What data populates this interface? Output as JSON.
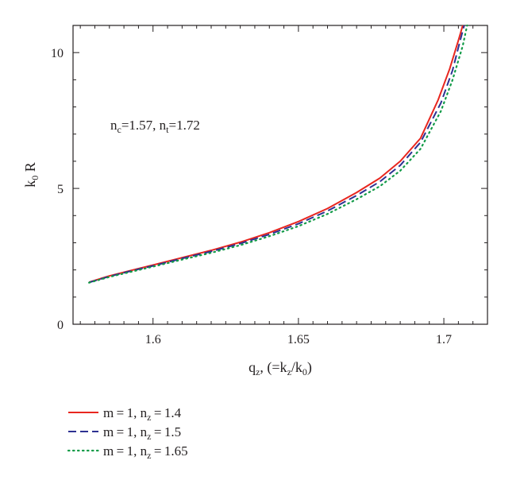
{
  "chart_data": {
    "type": "line",
    "xlabel": {
      "main": "q",
      "sub": "z",
      "mid": ", (=k",
      "sub2": "z",
      "mid2": "/k",
      "sub3": "0",
      "end": ")"
    },
    "ylabel": {
      "main": "k",
      "sub": "0",
      "end": " R"
    },
    "xlim": [
      1.5725,
      1.715
    ],
    "ylim": [
      0,
      11
    ],
    "xticks": [
      1.6,
      1.65,
      1.7
    ],
    "xtick_labels": [
      "1.6",
      "1.65",
      "1.7"
    ],
    "yticks": [
      0,
      5,
      10
    ],
    "ytick_labels": [
      "0",
      "5",
      "10"
    ],
    "grid": false,
    "annotation": {
      "p1": "n",
      "s1": "c",
      "p2": "=1.57, n",
      "s2": "t",
      "p3": "=1.72"
    },
    "legend_position": "below plot, left",
    "series": [
      {
        "name": "m = 1, n = 1.4",
        "legend": {
          "p1": "m = 1, n",
          "s1": "z",
          "p2": " = 1.4"
        },
        "color": "#e8261f",
        "dash": "solid",
        "x": [
          1.578,
          1.585,
          1.592,
          1.6,
          1.61,
          1.62,
          1.63,
          1.64,
          1.65,
          1.66,
          1.67,
          1.678,
          1.685,
          1.692,
          1.698,
          1.702,
          1.705,
          1.7065
        ],
        "y": [
          1.55,
          1.78,
          1.97,
          2.18,
          2.45,
          2.72,
          3.02,
          3.37,
          3.78,
          4.26,
          4.85,
          5.38,
          6.0,
          6.85,
          8.25,
          9.4,
          10.45,
          11.0
        ]
      },
      {
        "name": "m = 1, n = 1.5",
        "legend": {
          "p1": "m = 1, n",
          "s1": "z",
          "p2": " = 1.5"
        },
        "color": "#2e3192",
        "dash": "dashed",
        "x": [
          1.578,
          1.585,
          1.592,
          1.6,
          1.61,
          1.62,
          1.63,
          1.64,
          1.65,
          1.66,
          1.67,
          1.678,
          1.685,
          1.692,
          1.699,
          1.703,
          1.7055,
          1.707
        ],
        "y": [
          1.54,
          1.76,
          1.95,
          2.15,
          2.42,
          2.68,
          2.97,
          3.31,
          3.7,
          4.17,
          4.74,
          5.25,
          5.85,
          6.7,
          8.15,
          9.35,
          10.4,
          11.0
        ]
      },
      {
        "name": "m = 1, n = 1.65",
        "legend": {
          "p1": "m = 1, n",
          "s1": "z",
          "p2": " = 1.65"
        },
        "color": "#129b48",
        "dash": "dotted",
        "x": [
          1.578,
          1.585,
          1.592,
          1.6,
          1.61,
          1.62,
          1.63,
          1.64,
          1.65,
          1.66,
          1.67,
          1.678,
          1.685,
          1.692,
          1.699,
          1.703,
          1.7065,
          1.708
        ],
        "y": [
          1.53,
          1.74,
          1.92,
          2.12,
          2.38,
          2.63,
          2.91,
          3.24,
          3.61,
          4.06,
          4.6,
          5.08,
          5.65,
          6.46,
          7.85,
          9.0,
          10.25,
          11.0
        ]
      }
    ]
  }
}
